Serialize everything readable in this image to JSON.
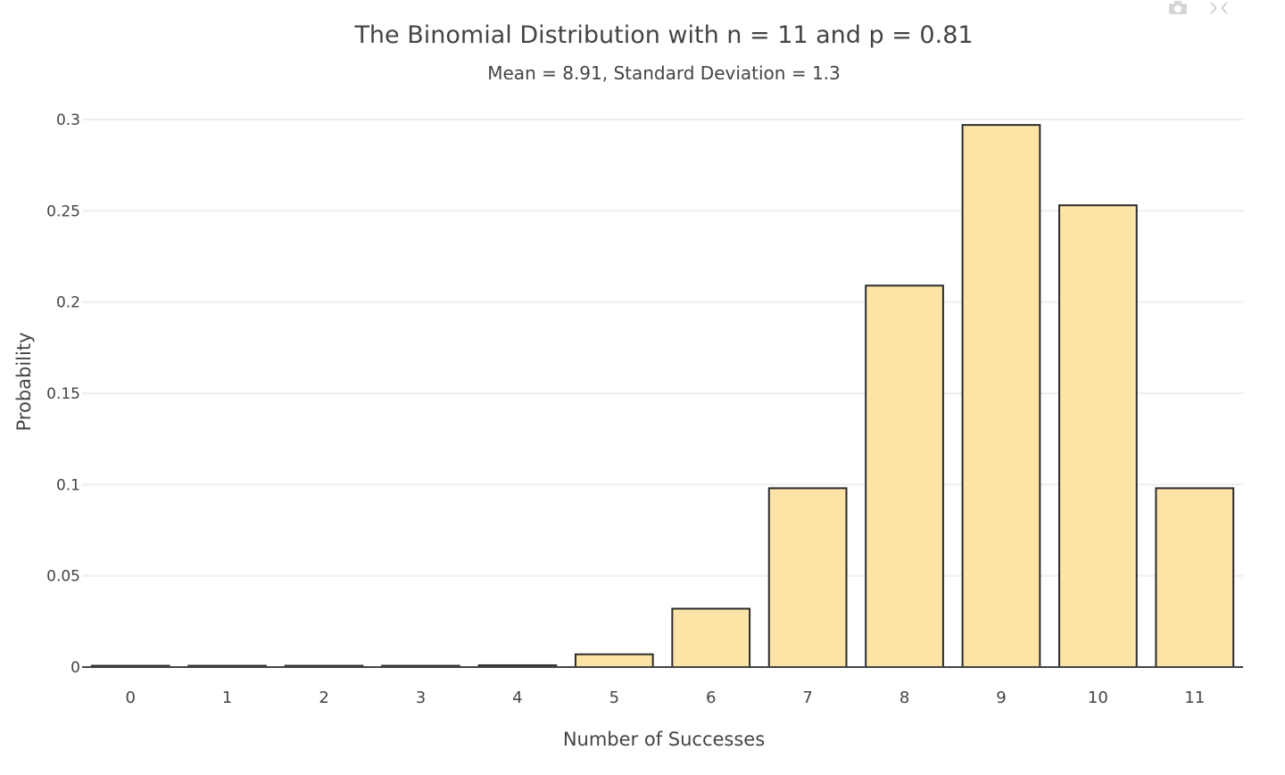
{
  "modebar": {
    "camera_icon": "camera-icon",
    "autoscale_icon": "autoscale-icon"
  },
  "chart_data": {
    "type": "bar",
    "title": "The Binomial Distribution with n = 11 and p = 0.81",
    "subtitle": "Mean = 8.91, Standard Deviation = 1.3",
    "xlabel": "Number of Successes",
    "ylabel": "Probability",
    "categories": [
      "0",
      "1",
      "2",
      "3",
      "4",
      "5",
      "6",
      "7",
      "8",
      "9",
      "10",
      "11"
    ],
    "values": [
      0.0,
      0.0,
      0.0,
      0.0,
      0.001,
      0.007,
      0.032,
      0.098,
      0.209,
      0.297,
      0.253,
      0.098
    ],
    "ylim": [
      0,
      0.3
    ],
    "yticks": [
      0,
      0.05,
      0.1,
      0.15,
      0.2,
      0.25,
      0.3
    ],
    "ytick_labels": [
      "0",
      "0.05",
      "0.1",
      "0.15",
      "0.2",
      "0.25",
      "0.3"
    ],
    "grid": true,
    "legend": "none",
    "colors": {
      "bar_fill": "#fce4a6",
      "bar_stroke": "#2b2b2b",
      "grid": "#eeeeee",
      "axis": "#444444",
      "text": "#444444"
    }
  }
}
